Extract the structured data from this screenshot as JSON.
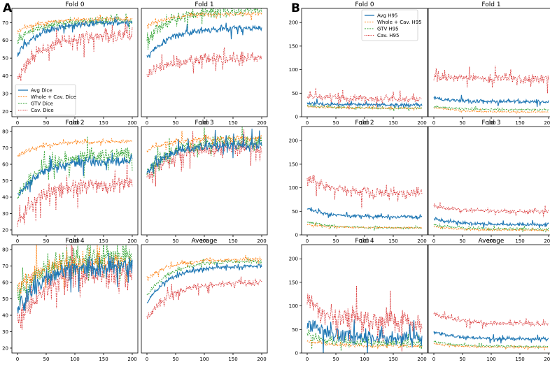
{
  "chart_data": {
    "type": "line",
    "x_range": [
      0,
      200
    ],
    "xticks": [
      0,
      50,
      100,
      150,
      200
    ],
    "series_styles": {
      "avg": {
        "color": "#1f77b4",
        "dash": ""
      },
      "whole": {
        "color": "#ff7f0e",
        "dash": "2,1.5"
      },
      "gtv": {
        "color": "#2ca02c",
        "dash": "2,1.5"
      },
      "cav": {
        "color": "#d62728",
        "dash": "1.2,1.2"
      }
    },
    "figures": [
      {
        "label": "A",
        "legend": [
          "Avg Dice",
          "Whole + Cav. Dice",
          "GTV Dice",
          "Cav. Dice"
        ],
        "legend_location": "lower-left of Fold 0",
        "panels": [
          {
            "title": "Fold 0",
            "ylim": [
              17,
              78
            ],
            "yticks": [
              20,
              30,
              40,
              50,
              60,
              70
            ],
            "series": {
              "avg": {
                "s": 52,
                "e": 70,
                "n": 3
              },
              "whole": {
                "s": 65,
                "e": 72,
                "n": 2
              },
              "gtv": {
                "s": 60,
                "e": 71,
                "n": 4
              },
              "cav": {
                "s": 38,
                "e": 63,
                "n": 7
              }
            }
          },
          {
            "title": "Fold 1",
            "ylim": [
              17,
              78
            ],
            "yticks": [],
            "series": {
              "avg": {
                "s": 50,
                "e": 67,
                "n": 3
              },
              "whole": {
                "s": 68,
                "e": 75,
                "n": 2
              },
              "gtv": {
                "s": 60,
                "e": 77,
                "n": 6
              },
              "cav": {
                "s": 40,
                "e": 50,
                "n": 5
              }
            }
          },
          {
            "title": "Fold 2",
            "ylim": [
              17,
              83
            ],
            "yticks": [
              20,
              30,
              40,
              50,
              60,
              70,
              80
            ],
            "series": {
              "avg": {
                "s": 40,
                "e": 62,
                "n": 5
              },
              "whole": {
                "s": 65,
                "e": 74,
                "n": 2
              },
              "gtv": {
                "s": 40,
                "e": 66,
                "n": 8
              },
              "cav": {
                "s": 25,
                "e": 48,
                "n": 8
              }
            }
          },
          {
            "title": "Fold 3",
            "ylim": [
              17,
              83
            ],
            "yticks": [],
            "series": {
              "avg": {
                "s": 55,
                "e": 72,
                "n": 5
              },
              "whole": {
                "s": 68,
                "e": 76,
                "n": 3
              },
              "gtv": {
                "s": 55,
                "e": 74,
                "n": 7
              },
              "cav": {
                "s": 52,
                "e": 70,
                "n": 8
              }
            }
          },
          {
            "title": "Fold 4",
            "ylim": [
              17,
              83
            ],
            "yticks": [
              20,
              30,
              40,
              50,
              60,
              70,
              80
            ],
            "series": {
              "avg": {
                "s": 42,
                "e": 70,
                "n": 10
              },
              "whole": {
                "s": 55,
                "e": 73,
                "n": 10
              },
              "gtv": {
                "s": 50,
                "e": 76,
                "n": 12
              },
              "cav": {
                "s": 35,
                "e": 66,
                "n": 14
              }
            }
          },
          {
            "title": "Average",
            "ylim": [
              17,
              83
            ],
            "yticks": [],
            "series": {
              "avg": {
                "s": 48,
                "e": 70,
                "n": 2
              },
              "whole": {
                "s": 62,
                "e": 74,
                "n": 2
              },
              "gtv": {
                "s": 52,
                "e": 73,
                "n": 2
              },
              "cav": {
                "s": 38,
                "e": 60,
                "n": 4
              }
            }
          }
        ]
      },
      {
        "label": "B",
        "legend": [
          "Avg H95",
          "Whole + Cav. H95",
          "GTV H95",
          "Cav. H95"
        ],
        "legend_location": "upper-right of Fold 0",
        "panels": [
          {
            "title": "Fold 0",
            "ylim": [
              0,
              230
            ],
            "yticks": [
              0,
              50,
              100,
              150,
              200
            ],
            "series": {
              "avg": {
                "s": 30,
                "e": 25,
                "n": 6
              },
              "whole": {
                "s": 22,
                "e": 18,
                "n": 3
              },
              "gtv": {
                "s": 25,
                "e": 18,
                "n": 5
              },
              "cav": {
                "s": 45,
                "e": 38,
                "n": 12
              }
            }
          },
          {
            "title": "Fold 1",
            "ylim": [
              0,
              230
            ],
            "yticks": [],
            "series": {
              "avg": {
                "s": 40,
                "e": 32,
                "n": 7
              },
              "whole": {
                "s": 20,
                "e": 10,
                "n": 3
              },
              "gtv": {
                "s": 22,
                "e": 15,
                "n": 4
              },
              "cav": {
                "s": 85,
                "e": 80,
                "n": 18
              }
            }
          },
          {
            "title": "Fold 2",
            "ylim": [
              0,
              230
            ],
            "yticks": [
              0,
              50,
              100,
              150,
              200
            ],
            "series": {
              "avg": {
                "s": 55,
                "e": 38,
                "n": 6
              },
              "whole": {
                "s": 22,
                "e": 15,
                "n": 3
              },
              "gtv": {
                "s": 28,
                "e": 15,
                "n": 4
              },
              "cav": {
                "s": 120,
                "e": 90,
                "n": 20
              }
            }
          },
          {
            "title": "Fold 3",
            "ylim": [
              0,
              230
            ],
            "yticks": [],
            "series": {
              "avg": {
                "s": 35,
                "e": 22,
                "n": 6
              },
              "whole": {
                "s": 18,
                "e": 10,
                "n": 3
              },
              "gtv": {
                "s": 22,
                "e": 12,
                "n": 5
              },
              "cav": {
                "s": 62,
                "e": 50,
                "n": 8
              }
            }
          },
          {
            "title": "Fold 4",
            "ylim": [
              0,
              230
            ],
            "yticks": [
              0,
              50,
              100,
              150,
              200
            ],
            "series": {
              "avg": {
                "s": 60,
                "e": 32,
                "n": 28
              },
              "whole": {
                "s": 25,
                "e": 15,
                "n": 6
              },
              "gtv": {
                "s": 40,
                "e": 20,
                "n": 14
              },
              "cav": {
                "s": 110,
                "e": 65,
                "n": 45
              }
            }
          },
          {
            "title": "Average",
            "ylim": [
              0,
              230
            ],
            "yticks": [],
            "series": {
              "avg": {
                "s": 45,
                "e": 30,
                "n": 6
              },
              "whole": {
                "s": 20,
                "e": 12,
                "n": 3
              },
              "gtv": {
                "s": 25,
                "e": 14,
                "n": 4
              },
              "cav": {
                "s": 85,
                "e": 62,
                "n": 10
              }
            }
          }
        ]
      }
    ]
  }
}
